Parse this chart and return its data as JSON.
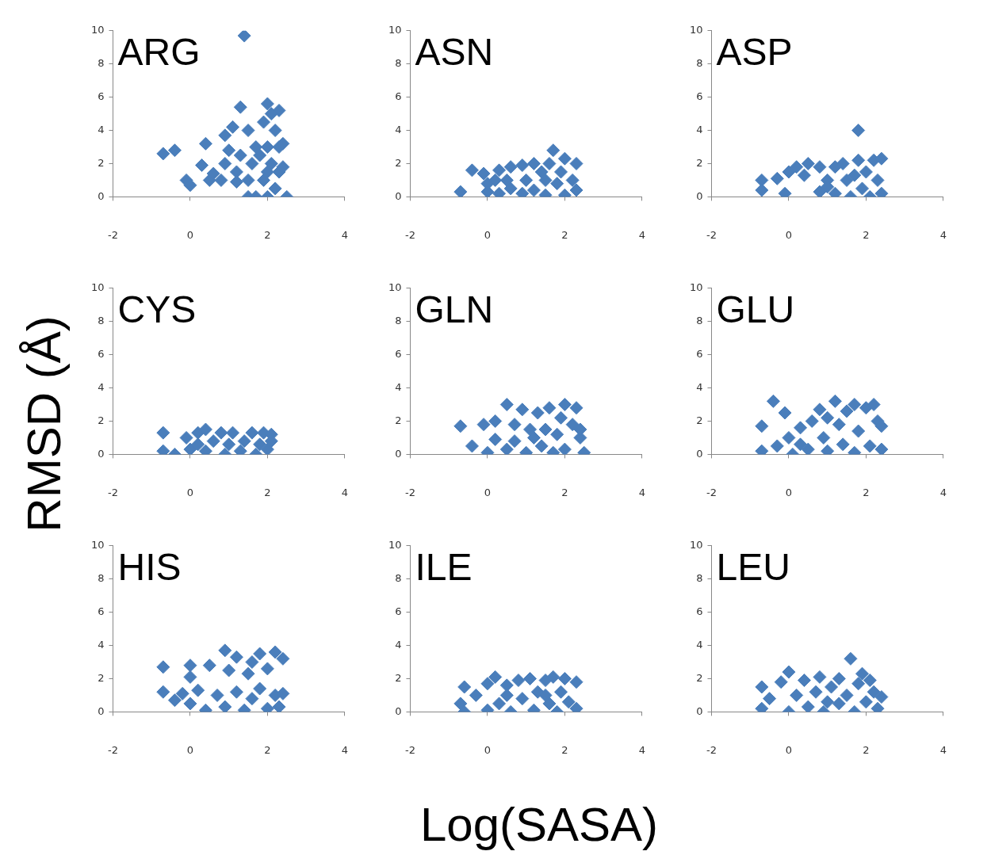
{
  "chart_data": [
    {
      "type": "scatter",
      "title": "ARG",
      "color": "#4a7ebb",
      "marker": "diamond",
      "xlim": [
        -2,
        4
      ],
      "xticks": [
        -2,
        0,
        2,
        4
      ],
      "ylim": [
        0,
        10
      ],
      "yticks": [
        0,
        2,
        4,
        6,
        8,
        10
      ],
      "x": [
        -0.7,
        -0.4,
        0.4,
        1.4,
        1.3,
        2.0,
        2.3,
        -0.1,
        0.0,
        0.3,
        0.5,
        0.8,
        0.9,
        0.9,
        1.1,
        1.0,
        1.2,
        1.3,
        1.5,
        1.5,
        1.6,
        1.7,
        1.5,
        1.7,
        1.9,
        1.9,
        2.0,
        2.0,
        2.1,
        2.1,
        2.2,
        2.2,
        2.3,
        2.3,
        2.4,
        2.4,
        2.5,
        1.8,
        2.0,
        1.2,
        0.6
      ],
      "values": [
        2.6,
        2.8,
        3.2,
        9.7,
        5.4,
        5.6,
        5.2,
        1.0,
        0.7,
        1.9,
        1.0,
        1.0,
        2.0,
        3.7,
        4.2,
        2.8,
        1.5,
        2.5,
        4.0,
        1.0,
        2.0,
        3.0,
        0.0,
        0.0,
        4.5,
        1.0,
        3.0,
        0.0,
        5.0,
        2.0,
        4.0,
        0.5,
        3.0,
        1.5,
        3.2,
        1.8,
        0.0,
        2.5,
        1.5,
        0.9,
        1.4
      ]
    },
    {
      "type": "scatter",
      "title": "ASN",
      "color": "#4a7ebb",
      "marker": "diamond",
      "xlim": [
        -2,
        4
      ],
      "xticks": [
        -2,
        0,
        2,
        4
      ],
      "ylim": [
        0,
        10
      ],
      "yticks": [
        0,
        2,
        4,
        6,
        8,
        10
      ],
      "x": [
        -0.7,
        -0.4,
        -0.1,
        0.0,
        0.0,
        0.3,
        0.3,
        0.6,
        0.6,
        0.9,
        0.9,
        1.0,
        1.2,
        1.2,
        1.4,
        1.5,
        1.6,
        1.7,
        1.8,
        1.9,
        2.0,
        2.0,
        2.2,
        2.3,
        2.3,
        0.5,
        1.5,
        0.2
      ],
      "values": [
        0.3,
        1.6,
        1.4,
        0.3,
        0.8,
        1.6,
        0.2,
        1.8,
        0.5,
        1.9,
        0.2,
        1.0,
        2.0,
        0.4,
        1.5,
        0.1,
        2.0,
        2.8,
        0.8,
        1.5,
        0.1,
        2.3,
        1.0,
        2.0,
        0.4,
        1.0,
        1.0,
        1.0
      ]
    },
    {
      "type": "scatter",
      "title": "ASP",
      "color": "#4a7ebb",
      "marker": "diamond",
      "xlim": [
        -2,
        4
      ],
      "xticks": [
        -2,
        0,
        2,
        4
      ],
      "ylim": [
        0,
        10
      ],
      "yticks": [
        0,
        2,
        4,
        6,
        8,
        10
      ],
      "x": [
        -0.7,
        -0.7,
        -0.1,
        -0.3,
        0.0,
        0.2,
        0.5,
        0.8,
        0.4,
        0.8,
        1.0,
        1.2,
        1.2,
        1.4,
        1.5,
        1.6,
        1.8,
        1.8,
        1.9,
        2.0,
        2.1,
        2.2,
        2.3,
        2.4,
        2.4,
        1.0,
        1.7
      ],
      "values": [
        1.0,
        0.4,
        0.2,
        1.1,
        1.5,
        1.8,
        2.0,
        1.8,
        1.3,
        0.3,
        1.0,
        1.8,
        0.2,
        2.0,
        1.0,
        0.0,
        4.0,
        2.2,
        0.5,
        1.5,
        0.0,
        2.2,
        1.0,
        2.3,
        0.2,
        0.6,
        1.3
      ]
    },
    {
      "type": "scatter",
      "title": "CYS",
      "ylabel": "RMSD (Å)",
      "color": "#4a7ebb",
      "marker": "diamond",
      "xlim": [
        -2,
        4
      ],
      "xticks": [
        -2,
        0,
        2,
        4
      ],
      "ylim": [
        0,
        10
      ],
      "yticks": [
        0,
        2,
        4,
        6,
        8,
        10
      ],
      "x": [
        -0.7,
        -0.7,
        -0.4,
        -0.1,
        0.0,
        0.2,
        0.4,
        0.4,
        0.6,
        0.8,
        0.9,
        1.0,
        1.1,
        1.3,
        1.4,
        1.6,
        1.7,
        1.8,
        1.9,
        2.0,
        2.1,
        2.1,
        0.2
      ],
      "values": [
        1.3,
        0.2,
        0.0,
        1.0,
        0.3,
        1.3,
        1.5,
        0.2,
        0.8,
        1.3,
        0.0,
        0.6,
        1.3,
        0.2,
        0.8,
        1.3,
        0.0,
        0.6,
        1.3,
        0.3,
        1.2,
        0.8,
        0.6
      ]
    },
    {
      "type": "scatter",
      "title": "GLN",
      "color": "#4a7ebb",
      "marker": "diamond",
      "xlim": [
        -2,
        4
      ],
      "xticks": [
        -2,
        0,
        2,
        4
      ],
      "ylim": [
        0,
        10
      ],
      "yticks": [
        0,
        2,
        4,
        6,
        8,
        10
      ],
      "x": [
        -0.7,
        -0.4,
        -0.1,
        0.0,
        0.2,
        0.2,
        0.5,
        0.5,
        0.7,
        0.9,
        1.0,
        1.1,
        1.3,
        1.4,
        1.5,
        1.6,
        1.7,
        1.8,
        1.9,
        2.0,
        2.0,
        2.2,
        2.3,
        2.4,
        2.4,
        2.5,
        0.7,
        1.2
      ],
      "values": [
        1.7,
        0.5,
        1.8,
        0.1,
        2.0,
        0.9,
        3.0,
        0.3,
        1.8,
        2.7,
        0.1,
        1.5,
        2.5,
        0.5,
        1.5,
        2.8,
        0.1,
        1.2,
        2.2,
        3.0,
        0.3,
        1.8,
        2.8,
        1.0,
        1.5,
        0.1,
        0.8,
        1.0
      ]
    },
    {
      "type": "scatter",
      "title": "GLU",
      "color": "#4a7ebb",
      "marker": "diamond",
      "xlim": [
        -2,
        4
      ],
      "xticks": [
        -2,
        0,
        2,
        4
      ],
      "ylim": [
        0,
        10
      ],
      "yticks": [
        0,
        2,
        4,
        6,
        8,
        10
      ],
      "x": [
        -0.7,
        -0.7,
        -0.4,
        -0.3,
        -0.1,
        0.0,
        0.1,
        0.3,
        0.5,
        0.6,
        0.8,
        0.9,
        1.0,
        1.2,
        1.3,
        1.4,
        1.5,
        1.7,
        1.7,
        1.8,
        2.0,
        2.1,
        2.2,
        2.3,
        2.4,
        2.4,
        1.0,
        0.3
      ],
      "values": [
        0.2,
        1.7,
        3.2,
        0.5,
        2.5,
        1.0,
        0.0,
        1.6,
        0.3,
        2.0,
        2.7,
        1.0,
        0.2,
        3.2,
        1.8,
        0.6,
        2.6,
        3.0,
        0.1,
        1.4,
        2.8,
        0.5,
        3.0,
        2.0,
        1.7,
        0.3,
        2.2,
        0.6
      ]
    },
    {
      "type": "scatter",
      "title": "HIS",
      "color": "#4a7ebb",
      "marker": "diamond",
      "xlim": [
        -2,
        4
      ],
      "xticks": [
        -2,
        0,
        2,
        4
      ],
      "ylim": [
        0,
        10
      ],
      "yticks": [
        0,
        2,
        4,
        6,
        8,
        10
      ],
      "x": [
        -0.7,
        -0.7,
        -0.4,
        0.0,
        0.0,
        0.0,
        -0.2,
        0.2,
        0.4,
        0.5,
        0.7,
        0.9,
        0.9,
        1.0,
        1.2,
        1.2,
        1.4,
        1.5,
        1.6,
        1.6,
        1.8,
        1.8,
        2.0,
        2.0,
        2.2,
        2.2,
        2.4,
        2.4,
        2.3
      ],
      "values": [
        2.7,
        1.2,
        0.7,
        2.8,
        2.1,
        0.5,
        1.1,
        1.3,
        0.1,
        2.8,
        1.0,
        3.7,
        0.3,
        2.5,
        3.3,
        1.2,
        0.1,
        2.3,
        3.0,
        0.8,
        3.5,
        1.4,
        2.6,
        0.2,
        3.6,
        1.0,
        3.2,
        1.1,
        0.3
      ]
    },
    {
      "type": "scatter",
      "title": "ILE",
      "xlabel": "Log(SASA)",
      "color": "#4a7ebb",
      "marker": "diamond",
      "xlim": [
        -2,
        4
      ],
      "xticks": [
        -2,
        0,
        2,
        4
      ],
      "ylim": [
        0,
        10
      ],
      "yticks": [
        0,
        2,
        4,
        6,
        8,
        10
      ],
      "x": [
        -0.6,
        -0.6,
        -0.7,
        -0.3,
        0.0,
        0.0,
        0.2,
        0.3,
        0.5,
        0.6,
        0.8,
        0.9,
        1.1,
        1.2,
        1.3,
        1.5,
        1.6,
        1.7,
        1.8,
        1.9,
        2.0,
        2.1,
        2.3,
        2.3,
        0.5,
        1.5
      ],
      "values": [
        1.5,
        0.0,
        0.5,
        1.0,
        1.7,
        0.1,
        2.1,
        0.5,
        1.6,
        0.0,
        1.9,
        0.8,
        2.0,
        0.1,
        1.2,
        1.9,
        0.5,
        2.1,
        0.0,
        1.2,
        2.0,
        0.6,
        1.8,
        0.2,
        1.0,
        1.0
      ]
    },
    {
      "type": "scatter",
      "title": "LEU",
      "color": "#4a7ebb",
      "marker": "diamond",
      "xlim": [
        -2,
        4
      ],
      "xticks": [
        -2,
        0,
        2,
        4
      ],
      "ylim": [
        0,
        10
      ],
      "yticks": [
        0,
        2,
        4,
        6,
        8,
        10
      ],
      "x": [
        -0.7,
        -0.7,
        -0.5,
        -0.2,
        0.0,
        0.0,
        0.2,
        0.4,
        0.5,
        0.7,
        0.8,
        0.9,
        1.1,
        1.3,
        1.3,
        1.5,
        1.6,
        1.7,
        1.8,
        1.9,
        2.0,
        2.1,
        2.2,
        2.3,
        2.4,
        1.0
      ],
      "values": [
        1.5,
        0.2,
        0.8,
        1.8,
        2.4,
        0.0,
        1.0,
        1.9,
        0.3,
        1.2,
        2.1,
        0.0,
        1.5,
        2.0,
        0.5,
        1.0,
        3.2,
        0.0,
        1.7,
        2.3,
        0.6,
        1.9,
        1.2,
        0.2,
        0.9,
        0.6
      ]
    }
  ]
}
